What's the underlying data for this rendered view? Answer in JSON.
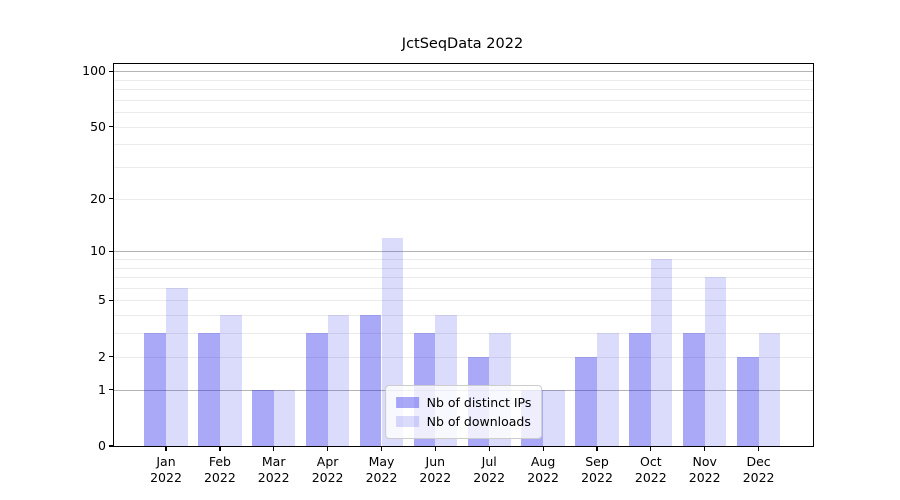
{
  "title": "JctSeqData 2022",
  "chart_data": {
    "type": "bar",
    "title": "JctSeqData 2022",
    "categories": [
      "Jan 2022",
      "Feb 2022",
      "Mar 2022",
      "Apr 2022",
      "May 2022",
      "Jun 2022",
      "Jul 2022",
      "Aug 2022",
      "Sep 2022",
      "Oct 2022",
      "Nov 2022",
      "Dec 2022"
    ],
    "series": [
      {
        "name": "Nb of distinct IPs",
        "color": "rgba(30,30,235,0.38)",
        "values": [
          3,
          3,
          1,
          3,
          4,
          3,
          2,
          1,
          2,
          3,
          3,
          2
        ]
      },
      {
        "name": "Nb of downloads",
        "color": "rgba(30,30,235,0.16)",
        "values": [
          6,
          4,
          1,
          4,
          12,
          4,
          3,
          1,
          3,
          9,
          7,
          3
        ]
      }
    ],
    "yticks": [
      0,
      1,
      2,
      5,
      10,
      20,
      50,
      100
    ],
    "major_gridlines_at": [
      1,
      10,
      100
    ],
    "scale": "log(1+x)",
    "ylim": [
      0,
      109
    ],
    "xlabel": "",
    "ylabel": "",
    "grid": "on",
    "legend_position": "lower center",
    "major_grid_color": "#b4b4b4",
    "minor_grid_color": "#ebebeb",
    "axis_color": "#000000"
  }
}
